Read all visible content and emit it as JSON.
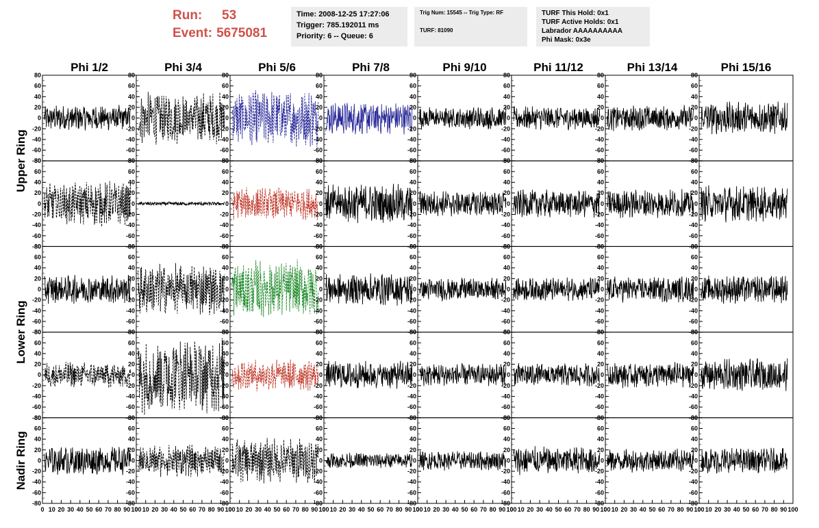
{
  "header": {
    "run_label": "Run:",
    "run_value": "53",
    "event_label": "Event:",
    "event_value": "5675081"
  },
  "info_boxes": {
    "time": {
      "line1": "Time: 2008-12-25 17:27:06",
      "line2": "Trigger: 785.192011 ms",
      "line3": "Priority: 6 -- Queue: 6"
    },
    "trig": {
      "line1": "Trig Num: 15545 -- Trig Type: RF",
      "line2": "TURF: 81090"
    },
    "turf": {
      "line1": "TURF This Hold: 0x1",
      "line2": "TURF Active Holds: 0x1",
      "line3": "Labrador AAAAAAAAAA",
      "line4": "Phi Mask: 0x3e"
    }
  },
  "colors": {
    "run_text": "#d0504a",
    "box_bg": "#ececec",
    "trace_black": "#000000",
    "trace_blue": "#2a2a9a",
    "trace_red": "#c0392b",
    "trace_green": "#1f8a2a"
  },
  "chart_data": {
    "type": "line",
    "grid": false,
    "columns": [
      "Phi 1/2",
      "Phi 3/4",
      "Phi 5/6",
      "Phi 7/8",
      "Phi 9/10",
      "Phi 11/12",
      "Phi 13/14",
      "Phi 15/16"
    ],
    "ring_labels": [
      "Upper Ring",
      "Lower Ring",
      "Nadir Ring"
    ],
    "ylim": [
      -80,
      80
    ],
    "yticks": [
      -80,
      -60,
      -40,
      -20,
      0,
      20,
      40,
      60,
      80
    ],
    "xlim": [
      0,
      100
    ],
    "xticks": [
      0,
      10,
      20,
      30,
      40,
      50,
      60,
      70,
      80,
      90,
      100
    ],
    "xtick_labels": [
      "0",
      "10",
      "20",
      "30",
      "40",
      "50",
      "60",
      "70",
      "80",
      "90",
      "100"
    ],
    "panel_rows": [
      {
        "ring": "Upper Ring",
        "traces": [
          {
            "amplitude": 20,
            "color": "black",
            "dashed": false
          },
          {
            "amplitude": 40,
            "color": "black",
            "dashed": true
          },
          {
            "amplitude": 45,
            "color": "blue",
            "dashed": true
          },
          {
            "amplitude": 25,
            "color": "blue",
            "dashed": false
          },
          {
            "amplitude": 18,
            "color": "black",
            "dashed": false
          },
          {
            "amplitude": 18,
            "color": "black",
            "dashed": false
          },
          {
            "amplitude": 20,
            "color": "black",
            "dashed": false
          },
          {
            "amplitude": 25,
            "color": "black",
            "dashed": false
          }
        ]
      },
      {
        "ring": "Upper Ring",
        "traces": [
          {
            "amplitude": 35,
            "color": "black",
            "dashed": true
          },
          {
            "amplitude": 3,
            "color": "black",
            "dashed": false
          },
          {
            "amplitude": 25,
            "color": "red",
            "dashed": true
          },
          {
            "amplitude": 30,
            "color": "black",
            "dashed": false
          },
          {
            "amplitude": 20,
            "color": "black",
            "dashed": false
          },
          {
            "amplitude": 22,
            "color": "black",
            "dashed": false
          },
          {
            "amplitude": 22,
            "color": "black",
            "dashed": false
          },
          {
            "amplitude": 28,
            "color": "black",
            "dashed": false
          }
        ]
      },
      {
        "ring": "Lower Ring",
        "traces": [
          {
            "amplitude": 22,
            "color": "black",
            "dashed": false
          },
          {
            "amplitude": 40,
            "color": "black",
            "dashed": true
          },
          {
            "amplitude": 45,
            "color": "green",
            "dashed": true
          },
          {
            "amplitude": 25,
            "color": "black",
            "dashed": false
          },
          {
            "amplitude": 18,
            "color": "black",
            "dashed": false
          },
          {
            "amplitude": 18,
            "color": "black",
            "dashed": false
          },
          {
            "amplitude": 20,
            "color": "black",
            "dashed": false
          },
          {
            "amplitude": 22,
            "color": "black",
            "dashed": false
          }
        ]
      },
      {
        "ring": "Lower Ring",
        "traces": [
          {
            "amplitude": 20,
            "color": "black",
            "dashed": true
          },
          {
            "amplitude": 60,
            "color": "black",
            "dashed": true
          },
          {
            "amplitude": 25,
            "color": "red",
            "dashed": true
          },
          {
            "amplitude": 22,
            "color": "black",
            "dashed": false
          },
          {
            "amplitude": 18,
            "color": "black",
            "dashed": false
          },
          {
            "amplitude": 18,
            "color": "black",
            "dashed": false
          },
          {
            "amplitude": 20,
            "color": "black",
            "dashed": false
          },
          {
            "amplitude": 25,
            "color": "black",
            "dashed": false
          }
        ]
      },
      {
        "ring": "Nadir Ring",
        "traces": [
          {
            "amplitude": 22,
            "color": "black",
            "dashed": false
          },
          {
            "amplitude": 25,
            "color": "black",
            "dashed": true
          },
          {
            "amplitude": 35,
            "color": "black",
            "dashed": true
          },
          {
            "amplitude": 12,
            "color": "black",
            "dashed": false
          },
          {
            "amplitude": 15,
            "color": "black",
            "dashed": false
          },
          {
            "amplitude": 22,
            "color": "black",
            "dashed": false
          },
          {
            "amplitude": 18,
            "color": "black",
            "dashed": false
          },
          {
            "amplitude": 20,
            "color": "black",
            "dashed": false
          }
        ]
      }
    ]
  }
}
